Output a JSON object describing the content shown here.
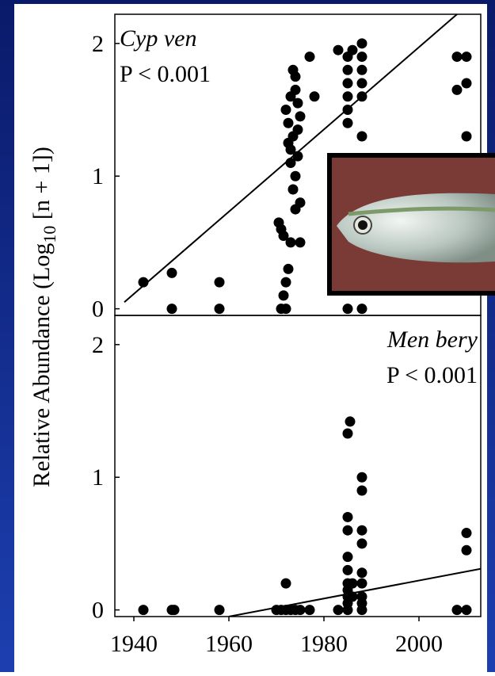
{
  "y_label": {
    "before": "Relative Abundance (Log",
    "subscript": "10",
    "after": " [n + 1])"
  },
  "chart_data": [
    {
      "type": "scatter",
      "species": "Cyp ven",
      "p_value": "P < 0.001",
      "label_corner": "top-left",
      "color": "#000000",
      "x": [
        1942,
        1948,
        1948,
        1958,
        1958,
        1970.5,
        1971,
        1971,
        1971.5,
        1971.5,
        1972,
        1972,
        1972,
        1972.5,
        1972.5,
        1972.5,
        1973,
        1973,
        1973,
        1973,
        1973.5,
        1973.5,
        1973.5,
        1974,
        1974,
        1974,
        1974,
        1974.5,
        1974.5,
        1974.5,
        1975,
        1975,
        1975,
        1977,
        1978,
        1983,
        1985,
        1985,
        1985,
        1985,
        1985,
        1985,
        1985,
        1986,
        1988,
        1988,
        1988,
        1988,
        1988,
        1988,
        1988,
        2008,
        2008,
        2010,
        2010,
        2010
      ],
      "y": [
        0.2,
        0.27,
        0,
        0.2,
        0,
        0.65,
        0,
        0.6,
        0.1,
        0.55,
        0,
        0.2,
        1.5,
        0.3,
        1.25,
        1.4,
        0.5,
        1.1,
        1.2,
        1.6,
        0.9,
        1.3,
        1.8,
        1.75,
        1.65,
        1.0,
        0.75,
        1.55,
        1.35,
        1.15,
        0.8,
        1.45,
        0.5,
        1.9,
        1.6,
        1.95,
        1.4,
        1.5,
        1.6,
        1.7,
        1.8,
        1.9,
        0,
        1.95,
        1.3,
        0,
        1.6,
        1.7,
        1.8,
        1.9,
        2.0,
        1.9,
        1.65,
        1.9,
        1.7,
        1.3
      ],
      "fit": {
        "x": [
          1938,
          2008
        ],
        "y": [
          0.05,
          2.22
        ]
      },
      "xlim": [
        1936,
        2013
      ],
      "ylim": [
        -0.05,
        2.22
      ],
      "yticks": [
        0,
        1,
        2
      ]
    },
    {
      "type": "scatter",
      "species": "Men bery",
      "p_value": "P < 0.001",
      "label_corner": "top-right",
      "color": "#000000",
      "x": [
        1942,
        1948,
        1948.5,
        1958,
        1970,
        1971,
        1972,
        1972,
        1973,
        1974,
        1975,
        1977,
        1983,
        1985,
        1985,
        1985,
        1985,
        1985,
        1985,
        1985,
        1985,
        1985,
        1985,
        1985.5,
        1986,
        1986,
        1988,
        1988,
        1988,
        1988,
        1988,
        1988,
        1988,
        1988,
        1988,
        2008,
        2010,
        2010,
        2010
      ],
      "y": [
        0,
        0,
        0,
        0,
        0,
        0,
        0,
        0.2,
        0,
        0,
        0,
        0,
        0,
        0,
        0.05,
        0.1,
        0.15,
        0.2,
        0.3,
        0.4,
        0.6,
        0.7,
        1.33,
        1.42,
        0.1,
        0.2,
        0,
        0.05,
        0.1,
        0.2,
        0.28,
        0.5,
        0.6,
        0.9,
        1.0,
        0,
        0,
        0.45,
        0.58
      ],
      "fit": {
        "x": [
          1960,
          2013
        ],
        "y": [
          -0.05,
          0.31
        ]
      },
      "xlim": [
        1936,
        2013
      ],
      "ylim": [
        -0.05,
        2.22
      ],
      "yticks": [
        0,
        1,
        2
      ],
      "xticks": [
        1940,
        1960,
        1980,
        2000
      ]
    }
  ]
}
